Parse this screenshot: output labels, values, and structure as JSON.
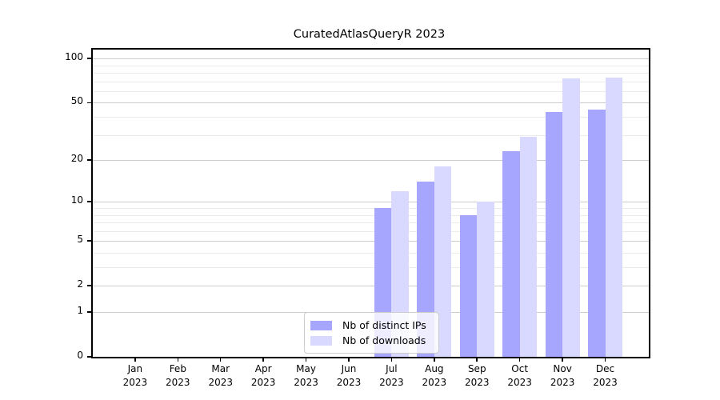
{
  "title": "CuratedAtlasQueryR 2023",
  "chart_data": {
    "type": "bar",
    "title": "CuratedAtlasQueryR 2023",
    "x_categories": [
      "Jan",
      "Feb",
      "Mar",
      "Apr",
      "May",
      "Jun",
      "Jul",
      "Aug",
      "Sep",
      "Oct",
      "Nov",
      "Dec"
    ],
    "x_year": "2023",
    "series": [
      {
        "name": "Nb of distinct IPs",
        "color": "#a6a6ff",
        "values": [
          0,
          0,
          0,
          0,
          0,
          0,
          9,
          14,
          8,
          23,
          43,
          45
        ]
      },
      {
        "name": "Nb of downloads",
        "color": "#d9d9ff",
        "values": [
          0,
          0,
          0,
          0,
          0,
          0,
          12,
          18,
          10,
          29,
          73,
          74
        ]
      }
    ],
    "xlabel": "",
    "ylabel": "",
    "y_scale": "log1p",
    "y_ticks": [
      0,
      1,
      2,
      5,
      10,
      20,
      50,
      100
    ],
    "y_minor_gridlines": [
      3,
      4,
      6,
      7,
      8,
      9,
      30,
      40,
      60,
      70,
      80,
      90
    ],
    "ylim": [
      0,
      115
    ],
    "grid": true,
    "legend_position": "lower center"
  },
  "colors": {
    "background": "#ffffff",
    "axis": "#000000",
    "grid_major": "#cccccc",
    "grid_minor": "#ebebeb",
    "bar_ips": "#a6a6ff",
    "bar_downloads": "#d9d9ff",
    "legend_border": "#cccccc"
  }
}
